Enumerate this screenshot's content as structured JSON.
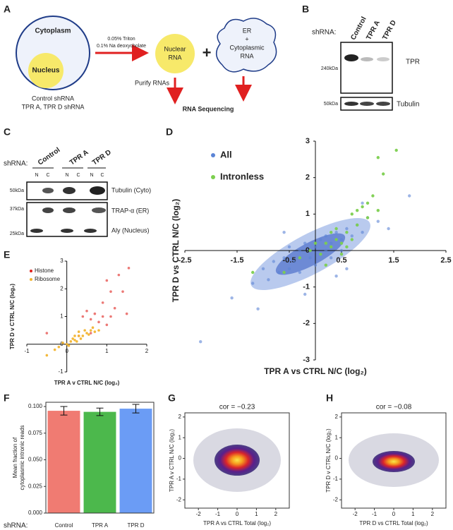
{
  "panel_labels": [
    "A",
    "B",
    "C",
    "D",
    "E",
    "F",
    "G",
    "H"
  ],
  "panels": {
    "A": {
      "cytoplasm": "Cytoplasm",
      "nucleus": "Nucleus",
      "cells": [
        "Control shRNA",
        "TPR A, TPR D shRNA"
      ],
      "treatment": [
        "0.05% Triton",
        "0.1% Na deoxycholate"
      ],
      "nuclear_rna": [
        "Nuclear",
        "RNA"
      ],
      "plus": "+",
      "cyto_rna": [
        "ER",
        "+",
        "Cytoplasmic",
        "RNA"
      ],
      "purify": "Purify RNAs",
      "sequencing": "RNA Sequencing"
    },
    "B": {
      "shrna": "shRNA:",
      "lanes": [
        "Control",
        "TPR A",
        "TPR D"
      ],
      "marker_1": "240kDa",
      "protein_1": "TPR",
      "marker_2": "50kDa",
      "protein_2": "Tubulin"
    },
    "C": {
      "shrna": "shRNA:",
      "lanes": [
        "Control",
        "TPR A",
        "TPR D"
      ],
      "fractions": [
        "N",
        "C",
        "N",
        "C",
        "N",
        "C"
      ],
      "markers": [
        "50kDa",
        "37kDa",
        "25kDa"
      ],
      "proteins": [
        "Tubulin (Cyto)",
        "TRAP-α (ER)",
        "Aly (Nucleus)"
      ]
    }
  },
  "chart_data": [
    {
      "type": "scatter",
      "axis_style": "cross",
      "legend": "upper left",
      "x_label": "TPR A vs CTRL N/C (log₂)",
      "y_label": "TPR D vs CTRL N/C (log₂)",
      "xlim": [
        -2.5,
        2.5
      ],
      "ylim": [
        -3,
        3
      ],
      "xticks": [
        -2.5,
        -1.5,
        -0.5,
        0.5,
        1.5,
        2.5
      ],
      "yticks": [
        -3,
        -2,
        -1,
        0,
        1,
        2,
        3
      ],
      "series": [
        {
          "name": "All",
          "color": "#5b84d6",
          "x": [
            -1.2,
            -1.0,
            -0.9,
            -0.8,
            -0.7,
            -0.6,
            -0.5,
            -0.5,
            -0.4,
            -0.3,
            -0.3,
            -0.2,
            -0.1,
            0.0,
            0.0,
            0.1,
            0.1,
            0.2,
            0.2,
            0.3,
            0.3,
            0.4,
            0.5,
            0.5,
            0.6,
            0.7,
            0.8,
            0.9,
            1.0,
            1.2,
            -1.6,
            1.8,
            -2.2,
            0.4,
            -0.6,
            0.9,
            1.4,
            -0.2,
            0.6,
            -1.1
          ],
          "y": [
            -0.9,
            -0.5,
            -0.8,
            -0.3,
            -0.6,
            -0.2,
            -0.5,
            0.1,
            -0.3,
            0.0,
            -0.6,
            0.2,
            -0.2,
            0.1,
            -0.4,
            0.3,
            -0.1,
            0.0,
            0.4,
            0.2,
            -0.2,
            0.5,
            0.3,
            0.0,
            0.6,
            0.4,
            0.7,
            0.5,
            0.9,
            0.8,
            -1.3,
            1.5,
            -2.5,
            -0.7,
            0.5,
            1.3,
            0.6,
            -1.2,
            -0.5,
            -1.6
          ]
        },
        {
          "name": "Intronless",
          "color": "#7ccf4f",
          "x": [
            0.5,
            0.6,
            0.8,
            1.0,
            0.9,
            1.2,
            1.1,
            1.3,
            1.55,
            1.2,
            0.7,
            0.4,
            0.3,
            0.2,
            0.1,
            -0.1,
            -0.3,
            -0.6,
            -1.2,
            0.6,
            0.5,
            0.4,
            0.7,
            0.0,
            0.2,
            1.0,
            0.8,
            0.3
          ],
          "y": [
            0.2,
            0.5,
            0.7,
            0.9,
            1.2,
            1.1,
            1.5,
            2.1,
            2.75,
            2.55,
            1.0,
            0.3,
            0.1,
            0.2,
            -0.1,
            0.0,
            -0.2,
            -0.6,
            -0.6,
            0.1,
            -0.1,
            0.6,
            0.3,
            0.2,
            -0.4,
            1.3,
            1.1,
            0.5
          ]
        }
      ]
    },
    {
      "type": "scatter",
      "axis_style": "cross",
      "legend": "upper left",
      "x_label": "TPR A v CTRL N/C (log₂)",
      "y_label": "TPR D v CTRL N/C (log₂)",
      "xlim": [
        -1,
        2
      ],
      "ylim": [
        -1,
        3
      ],
      "xticks": [
        -1,
        0,
        1,
        2
      ],
      "yticks": [
        -1,
        0,
        1,
        2,
        3
      ],
      "series": [
        {
          "name": "Histone",
          "color": "#e0201b",
          "x": [
            1.55,
            1.3,
            1.0,
            1.1,
            1.4,
            0.9,
            1.2,
            0.7,
            0.5,
            1.1,
            0.8,
            0.6,
            1.5,
            0.4,
            -0.5,
            0.9,
            0.3,
            0.6,
            1.0
          ],
          "y": [
            2.75,
            2.5,
            2.3,
            1.9,
            1.9,
            1.5,
            1.3,
            1.1,
            1.2,
            1.0,
            0.8,
            0.9,
            1.1,
            1.0,
            0.4,
            1.0,
            0.3,
            0.4,
            0.7
          ]
        },
        {
          "name": "Ribosome",
          "color": "#f2b531",
          "x": [
            0.0,
            0.1,
            0.2,
            0.3,
            0.4,
            0.5,
            0.6,
            0.7,
            0.2,
            0.35,
            -0.1,
            0.15,
            0.45,
            0.55,
            0.25,
            0.05,
            -0.3,
            -0.5,
            0.3,
            0.65,
            0.8,
            -0.2
          ],
          "y": [
            0.0,
            0.1,
            0.15,
            0.3,
            0.3,
            0.4,
            0.5,
            0.45,
            0.3,
            0.2,
            0.05,
            0.2,
            0.5,
            0.35,
            0.1,
            -0.05,
            -0.2,
            -0.4,
            0.45,
            0.6,
            0.5,
            -0.1
          ]
        }
      ]
    },
    {
      "type": "bar",
      "x_label": "shRNA:",
      "y_label": [
        "Mean fraction of",
        "cytoplasmic intronic reads"
      ],
      "categories": [
        "Control",
        "TPR A",
        "TPR D"
      ],
      "values": [
        0.096,
        0.095,
        0.098
      ],
      "errors": [
        0.004,
        0.0035,
        0.004
      ],
      "colors": [
        "#f07b72",
        "#4cb84c",
        "#6b9cf5"
      ],
      "ylim": [
        0,
        0.104
      ],
      "yticks": [
        {
          "value": 0,
          "label": "0.000"
        },
        {
          "value": 0.025,
          "label": "0.025"
        },
        {
          "value": 0.05,
          "label": "0.050"
        },
        {
          "value": 0.075,
          "label": "0.075"
        },
        {
          "value": 0.1,
          "label": "0.100"
        }
      ]
    },
    {
      "type": "density",
      "axis_style": "box",
      "title": "cor = −0.23",
      "x_label": "TPR A vs CTRL Total (log₂)",
      "y_label": "TPR A v CTRL N/C (log₂)",
      "xlim": [
        -2.7,
        2.7
      ],
      "ylim": [
        -2.4,
        2.2
      ],
      "xticks": [
        -2,
        -1,
        0,
        1,
        2
      ],
      "yticks": [
        -2,
        -1,
        0,
        1,
        2
      ]
    },
    {
      "type": "density",
      "axis_style": "box",
      "title": "cor = −0.08",
      "x_label": "TPR D vs CTRL Total (log₂)",
      "y_label": "TPR D v CTRL N/C (log₂)",
      "xlim": [
        -2.7,
        2.7
      ],
      "ylim": [
        -2.4,
        2.2
      ],
      "xticks": [
        -2,
        -1,
        0,
        1,
        2
      ],
      "yticks": [
        -2,
        -1,
        0,
        1,
        2
      ]
    }
  ]
}
